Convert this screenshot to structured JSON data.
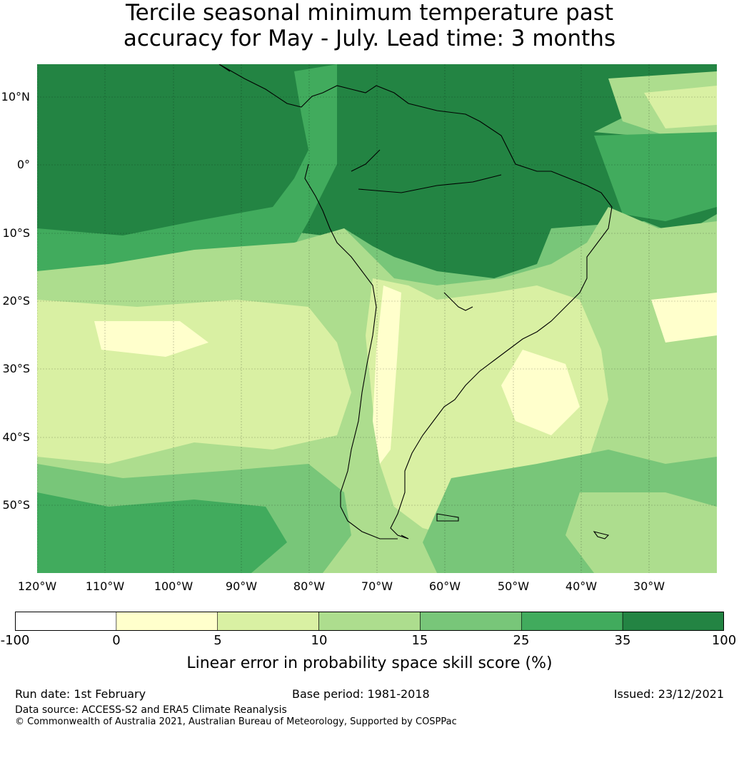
{
  "title_line1": "Tercile seasonal minimum temperature past",
  "title_line2": "accuracy for May - July. Lead time: 3 months",
  "lat_labels": [
    "10°N",
    "0°",
    "10°S",
    "20°S",
    "30°S",
    "40°S",
    "50°S"
  ],
  "lon_labels": [
    "120°W",
    "110°W",
    "100°W",
    "90°W",
    "80°W",
    "70°W",
    "60°W",
    "50°W",
    "40°W",
    "30°W"
  ],
  "colorbar": {
    "ticks": [
      "-100",
      "0",
      "5",
      "10",
      "15",
      "25",
      "35",
      "100"
    ],
    "colors": [
      "#ffffff",
      "#ffffcc",
      "#d9f0a3",
      "#addd8e",
      "#78c679",
      "#41ab5d",
      "#238443"
    ],
    "label": "Linear error in probability space skill score (%)"
  },
  "footer": {
    "run_date": "Run date: 1st February",
    "base_period": "Base period: 1981-2018",
    "issued": "Issued: 23/12/2021",
    "data_source": "Data source: ACCESS-S2 and ERA5 Climate Reanalysis",
    "copyright": "© Commonwealth of Australia 2021, Australian Bureau of Meteorology, Supported by COSPPac"
  }
}
